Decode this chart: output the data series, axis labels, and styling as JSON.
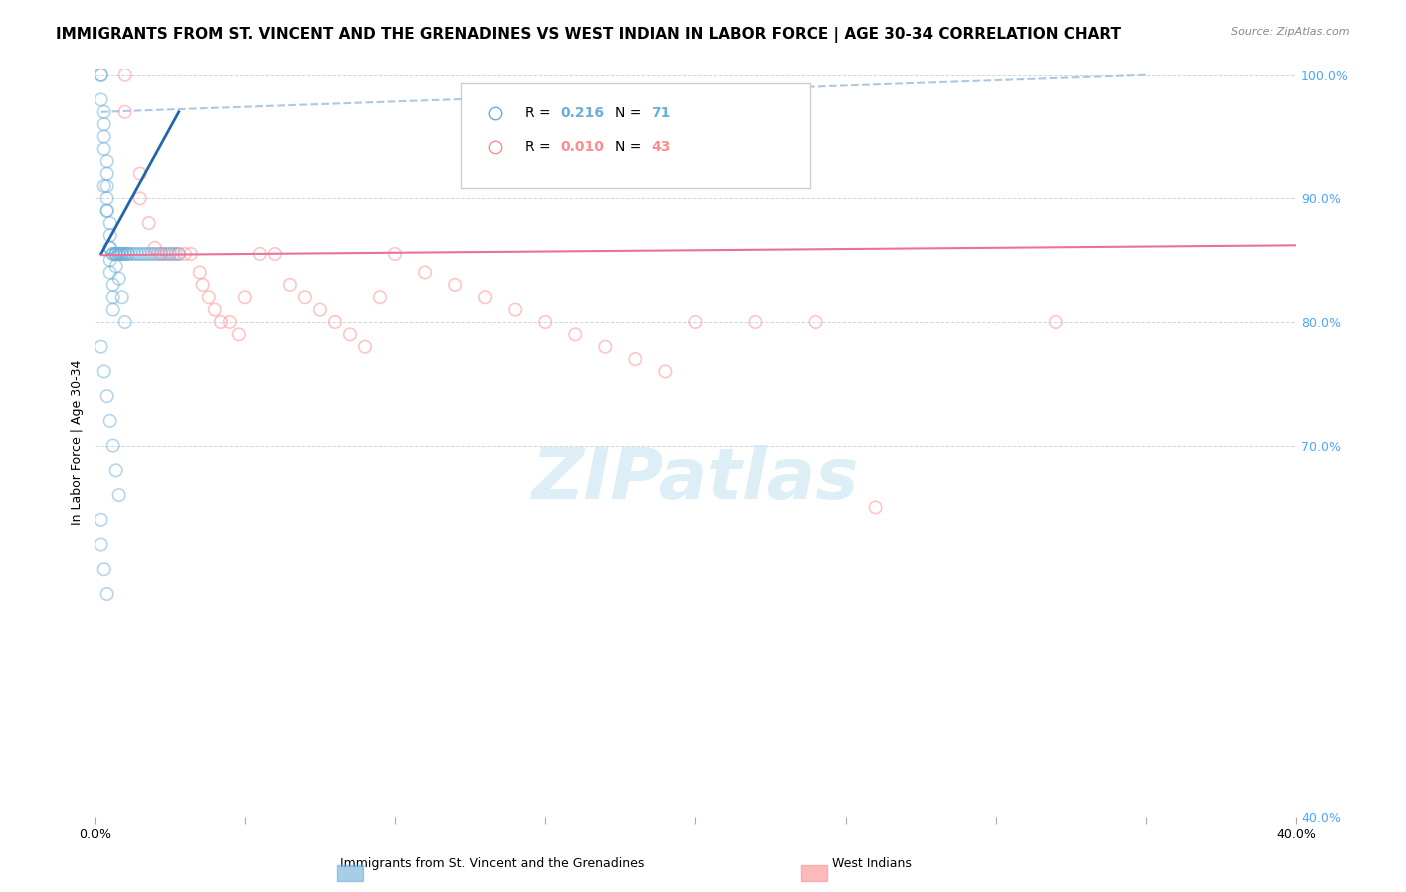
{
  "title": "IMMIGRANTS FROM ST. VINCENT AND THE GRENADINES VS WEST INDIAN IN LABOR FORCE | AGE 30-34 CORRELATION CHART",
  "source": "Source: ZipAtlas.com",
  "xlabel": "",
  "ylabel": "In Labor Force | Age 30-34",
  "xlim": [
    0.0,
    0.4
  ],
  "ylim": [
    0.4,
    1.005
  ],
  "xticks": [
    0.0,
    0.05,
    0.1,
    0.15,
    0.2,
    0.25,
    0.3,
    0.35,
    0.4
  ],
  "xticklabels": [
    "0.0%",
    "",
    "",
    "",
    "",
    "",
    "",
    "",
    "40.0%"
  ],
  "yticks": [
    0.4,
    0.7,
    0.8,
    0.9,
    1.0
  ],
  "yticklabels": [
    "40.0%",
    "70.0%",
    "80.0%",
    "90.0%",
    "100.0%"
  ],
  "legend_entries": [
    {
      "label": "R = 0.216  N = 71",
      "color": "#6baed6"
    },
    {
      "label": "R = 0.010  N = 43",
      "color": "#fd8d8d"
    }
  ],
  "blue_scatter_x": [
    0.002,
    0.002,
    0.002,
    0.003,
    0.003,
    0.003,
    0.003,
    0.004,
    0.004,
    0.004,
    0.004,
    0.004,
    0.005,
    0.005,
    0.005,
    0.005,
    0.005,
    0.006,
    0.006,
    0.006,
    0.006,
    0.007,
    0.007,
    0.007,
    0.007,
    0.008,
    0.008,
    0.008,
    0.009,
    0.009,
    0.009,
    0.01,
    0.01,
    0.011,
    0.011,
    0.012,
    0.013,
    0.014,
    0.015,
    0.016,
    0.017,
    0.018,
    0.019,
    0.02,
    0.021,
    0.022,
    0.023,
    0.024,
    0.025,
    0.026,
    0.027,
    0.028,
    0.003,
    0.004,
    0.005,
    0.006,
    0.007,
    0.008,
    0.009,
    0.01,
    0.002,
    0.003,
    0.004,
    0.005,
    0.006,
    0.007,
    0.008,
    0.002,
    0.002,
    0.003,
    0.004
  ],
  "blue_scatter_y": [
    1.0,
    1.0,
    0.98,
    0.97,
    0.96,
    0.95,
    0.94,
    0.93,
    0.92,
    0.91,
    0.9,
    0.89,
    0.88,
    0.87,
    0.86,
    0.85,
    0.84,
    0.83,
    0.82,
    0.81,
    0.855,
    0.855,
    0.855,
    0.855,
    0.855,
    0.855,
    0.855,
    0.855,
    0.855,
    0.855,
    0.855,
    0.855,
    0.855,
    0.855,
    0.855,
    0.855,
    0.855,
    0.855,
    0.855,
    0.855,
    0.855,
    0.855,
    0.855,
    0.855,
    0.855,
    0.855,
    0.855,
    0.855,
    0.855,
    0.855,
    0.855,
    0.855,
    0.91,
    0.89,
    0.86,
    0.855,
    0.845,
    0.835,
    0.82,
    0.8,
    0.78,
    0.76,
    0.74,
    0.72,
    0.7,
    0.68,
    0.66,
    0.64,
    0.62,
    0.6,
    0.58
  ],
  "pink_scatter_x": [
    0.01,
    0.01,
    0.015,
    0.015,
    0.018,
    0.02,
    0.022,
    0.025,
    0.028,
    0.03,
    0.032,
    0.035,
    0.036,
    0.038,
    0.04,
    0.042,
    0.045,
    0.048,
    0.05,
    0.055,
    0.06,
    0.065,
    0.07,
    0.075,
    0.08,
    0.085,
    0.09,
    0.095,
    0.1,
    0.11,
    0.12,
    0.13,
    0.14,
    0.15,
    0.16,
    0.17,
    0.18,
    0.19,
    0.2,
    0.22,
    0.24,
    0.26,
    0.32
  ],
  "pink_scatter_y": [
    1.0,
    0.97,
    0.92,
    0.9,
    0.88,
    0.86,
    0.855,
    0.855,
    0.855,
    0.855,
    0.855,
    0.84,
    0.83,
    0.82,
    0.81,
    0.8,
    0.8,
    0.79,
    0.82,
    0.855,
    0.855,
    0.83,
    0.82,
    0.81,
    0.8,
    0.79,
    0.78,
    0.82,
    0.855,
    0.84,
    0.83,
    0.82,
    0.81,
    0.8,
    0.79,
    0.78,
    0.77,
    0.76,
    0.8,
    0.8,
    0.8,
    0.65,
    0.8
  ],
  "blue_line_x": [
    0.002,
    0.028
  ],
  "blue_line_y": [
    0.855,
    0.97
  ],
  "pink_line_x": [
    0.002,
    0.4
  ],
  "pink_line_y": [
    0.854,
    0.862
  ],
  "dash_line_x": [
    0.002,
    0.35
  ],
  "dash_line_y": [
    0.97,
    1.0
  ],
  "watermark": "ZIPatlas",
  "blue_color": "#6baed6",
  "pink_color": "#fd8d8d",
  "blue_line_color": "#2166ac",
  "pink_line_color": "#e8739a",
  "dash_line_color": "#aec8e0",
  "grid_color": "#d0d8e0",
  "right_tick_color": "#4da6ff",
  "title_fontsize": 11,
  "axis_fontsize": 9,
  "scatter_size": 80,
  "scatter_alpha": 0.5,
  "scatter_linewidth": 1.2
}
